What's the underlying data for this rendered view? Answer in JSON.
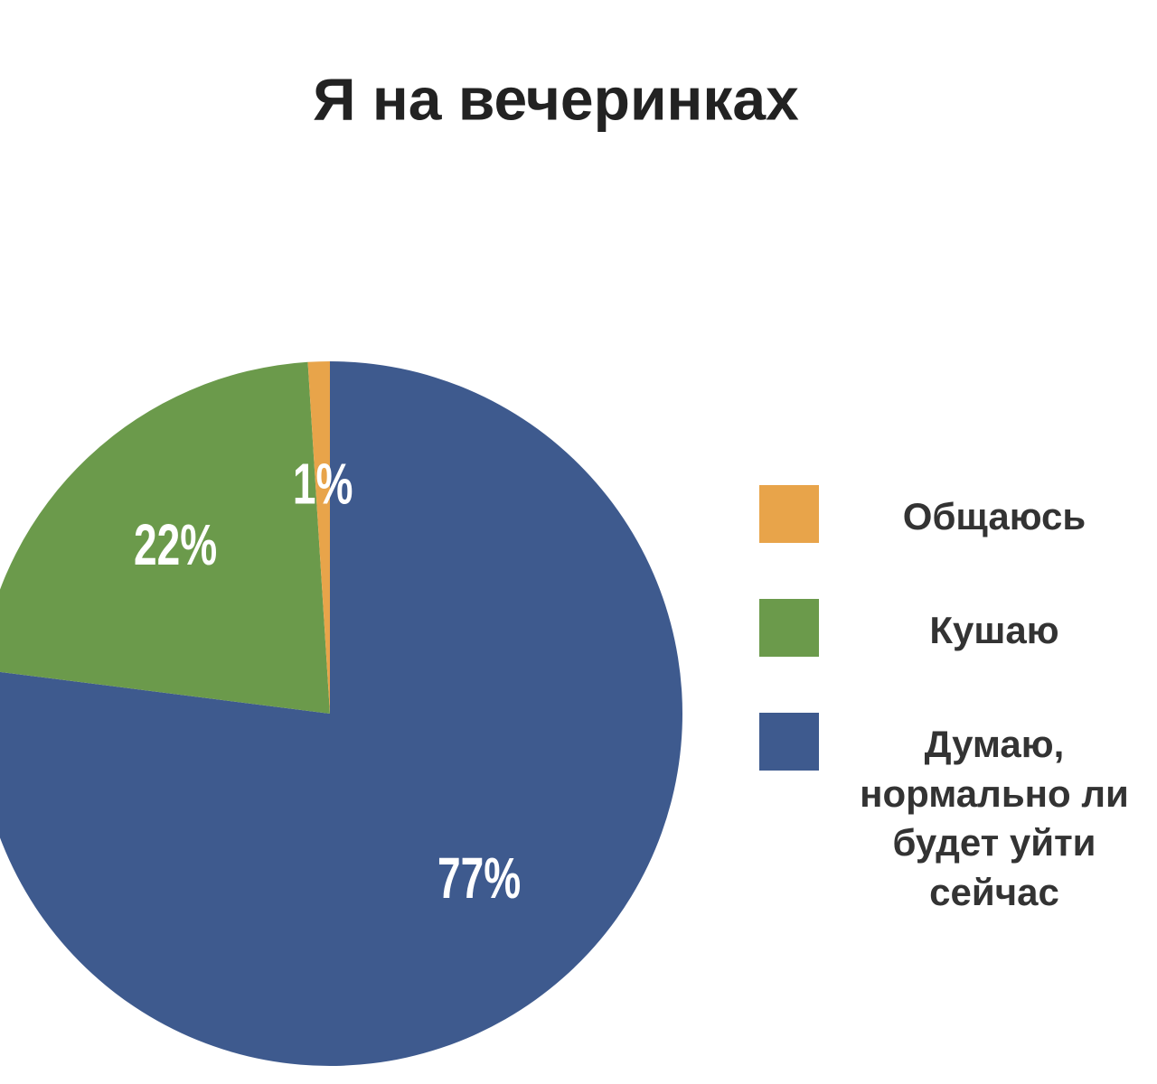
{
  "chart_data": {
    "type": "pie",
    "title": "Я на вечеринках",
    "categories": [
      "Общаюсь",
      "Кушаю",
      "Думаю, нормально ли будет уйти сейчас"
    ],
    "values": [
      1,
      22,
      77
    ],
    "value_labels": [
      "1%",
      "22%",
      "77%"
    ],
    "colors": [
      "#e8a44a",
      "#6b9a4b",
      "#3e5a8e"
    ]
  }
}
